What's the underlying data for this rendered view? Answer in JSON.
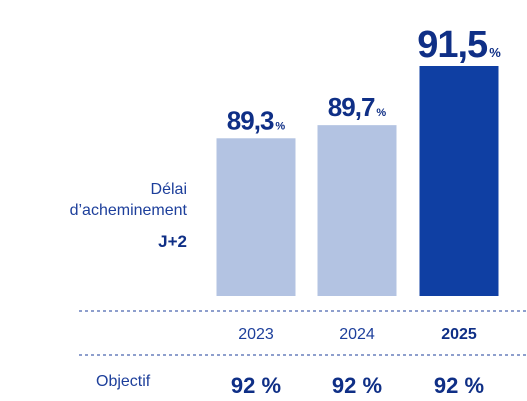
{
  "chart_data": {
    "type": "bar",
    "categories": [
      "2023",
      "2024",
      "2025"
    ],
    "values": [
      89.3,
      89.7,
      91.5
    ],
    "value_labels": [
      "89,3",
      "89,7",
      "91,5"
    ],
    "unit": "%",
    "objective_label": "Objectif",
    "objectives": [
      "92 %",
      "92 %",
      "92 %"
    ],
    "side_label": [
      "Délai",
      "d’acheminement",
      "J+2"
    ],
    "highlight_index": 2,
    "colors": {
      "normal": "#b3c3e2",
      "highlight": "#0f3fa3",
      "text": "#1d3f9b",
      "text_dark": "#0f2f86"
    }
  }
}
